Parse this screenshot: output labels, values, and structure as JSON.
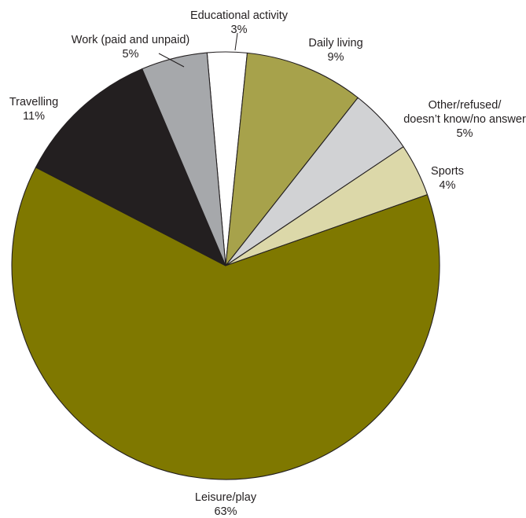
{
  "chart_data": {
    "type": "pie",
    "title": "",
    "slices": [
      {
        "label": "Educational activity",
        "value": 3,
        "value_label": "3%",
        "color": "#ffffff"
      },
      {
        "label": "Daily living",
        "value": 9,
        "value_label": "9%",
        "color": "#a7a24b"
      },
      {
        "label": "Other/refused/ doesn’t know/no answer",
        "label_lines": [
          "Other/refused/",
          "doesn’t know/no answer"
        ],
        "value": 5,
        "value_label": "5%",
        "color": "#d1d2d4"
      },
      {
        "label": "Sports",
        "value": 4,
        "value_label": "4%",
        "color": "#dcd8a9"
      },
      {
        "label": "Leisure/play",
        "value": 63,
        "value_label": "63%",
        "color": "#7f7800"
      },
      {
        "label": "Travelling",
        "value": 11,
        "value_label": "11%",
        "color": "#231f20"
      },
      {
        "label": "Work (paid and unpaid)",
        "value": 5,
        "value_label": "5%",
        "color": "#a6a8ab"
      }
    ]
  }
}
